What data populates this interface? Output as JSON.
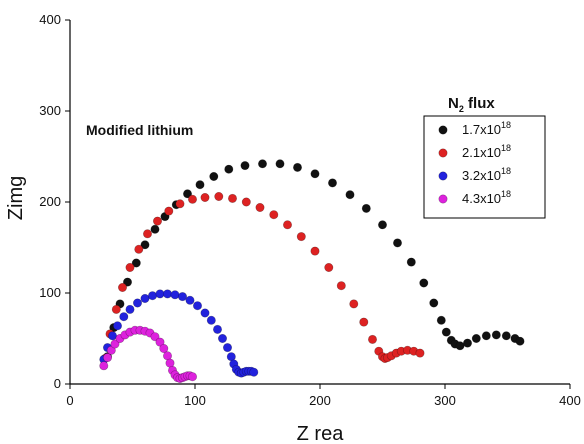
{
  "chart_data": {
    "type": "scatter",
    "title": "",
    "xlabel": "Z rea",
    "ylabel": "Zimg",
    "xlim": [
      0,
      400
    ],
    "ylim": [
      0,
      400
    ],
    "xticks": [
      0,
      100,
      200,
      300,
      400
    ],
    "yticks": [
      0,
      100,
      200,
      300,
      400
    ],
    "grid": false,
    "annotation": "Modified lithium",
    "legend": {
      "title_main": "N",
      "title_sub": "2",
      "title_rest": " flux",
      "placement": "right"
    },
    "series": [
      {
        "name": "1.7x10^18",
        "label_base": "1.7x10",
        "label_exp": "18",
        "color": "#111111",
        "x": [
          30,
          35,
          40,
          46,
          53,
          60,
          68,
          76,
          85,
          94,
          104,
          115,
          127,
          140,
          154,
          168,
          182,
          196,
          210,
          224,
          237,
          250,
          262,
          273,
          283,
          291,
          297,
          301,
          305,
          308,
          312,
          318,
          325,
          333,
          341,
          349,
          356,
          360
        ],
        "y": [
          30,
          62,
          88,
          112,
          133,
          153,
          170,
          184,
          197,
          209,
          219,
          228,
          236,
          240,
          242,
          242,
          238,
          231,
          221,
          208,
          193,
          175,
          155,
          134,
          111,
          89,
          70,
          57,
          48,
          44,
          42,
          45,
          50,
          53,
          54,
          53,
          50,
          47
        ]
      },
      {
        "name": "2.1x10^18",
        "label_base": "2.1x10",
        "label_exp": "18",
        "color": "#dd2222",
        "x": [
          28,
          32,
          37,
          42,
          48,
          55,
          62,
          70,
          79,
          88,
          98,
          108,
          119,
          130,
          141,
          152,
          163,
          174,
          185,
          196,
          207,
          217,
          227,
          235,
          242,
          247,
          250,
          252,
          254,
          257,
          261,
          265,
          270,
          275,
          280
        ],
        "y": [
          28,
          55,
          82,
          106,
          128,
          148,
          165,
          179,
          190,
          198,
          203,
          205,
          206,
          204,
          200,
          194,
          186,
          175,
          162,
          146,
          128,
          108,
          88,
          68,
          49,
          36,
          30,
          28,
          29,
          31,
          34,
          36,
          37,
          36,
          34
        ]
      },
      {
        "name": "3.2x10^18",
        "label_base": "3.2x10",
        "label_exp": "18",
        "color": "#2222dd",
        "x": [
          27,
          30,
          34,
          38,
          43,
          48,
          54,
          60,
          66,
          72,
          78,
          84,
          90,
          96,
          102,
          108,
          113,
          118,
          122,
          126,
          129,
          131,
          133,
          135,
          137,
          139,
          141,
          143,
          145,
          147
        ],
        "y": [
          27,
          40,
          53,
          64,
          74,
          82,
          89,
          94,
          97,
          99,
          99,
          98,
          96,
          92,
          86,
          78,
          70,
          60,
          50,
          40,
          30,
          22,
          16,
          13,
          12,
          13,
          14,
          14,
          14,
          13
        ]
      },
      {
        "name": "4.3x10^18",
        "label_base": "4.3x10",
        "label_exp": "18",
        "color": "#dd22dd",
        "x": [
          27,
          30,
          33,
          36,
          40,
          44,
          48,
          52,
          56,
          60,
          64,
          68,
          72,
          75,
          78,
          80,
          82,
          84,
          86,
          88,
          90,
          92,
          94,
          96,
          98
        ],
        "y": [
          20,
          29,
          37,
          44,
          50,
          54,
          57,
          59,
          59,
          58,
          56,
          52,
          46,
          39,
          31,
          23,
          15,
          10,
          7,
          6,
          7,
          8,
          9,
          9,
          8
        ]
      }
    ]
  }
}
